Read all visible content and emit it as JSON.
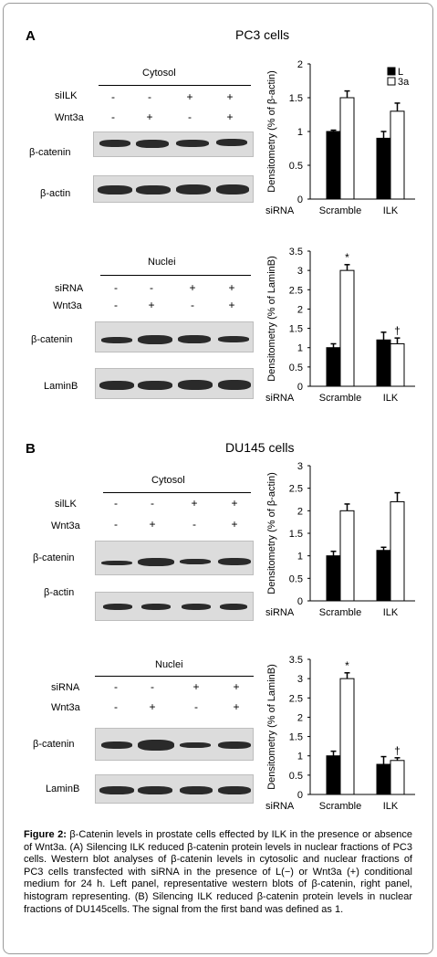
{
  "panels": [
    {
      "label": "A",
      "title": "PC3 cells",
      "blots": [
        {
          "header": "Cytosol",
          "cond_rows": [
            {
              "label": "siILK",
              "values": [
                "-",
                "-",
                "+",
                "+"
              ]
            },
            {
              "label": "Wnt3a",
              "values": [
                "-",
                "+",
                "-",
                "+"
              ]
            }
          ],
          "band_labels": [
            "β-catenin",
            "β-actin"
          ]
        },
        {
          "header": "Nuclei",
          "cond_rows": [
            {
              "label": "siRNA",
              "values": [
                "-",
                "-",
                "+",
                "+"
              ]
            },
            {
              "label": "Wnt3a",
              "values": [
                "-",
                "+",
                "-",
                "+"
              ]
            }
          ],
          "band_labels": [
            "β-catenin",
            "LaminB"
          ]
        }
      ]
    },
    {
      "label": "B",
      "title": "DU145 cells",
      "blots": [
        {
          "header": "Cytosol",
          "cond_rows": [
            {
              "label": "silLK",
              "values": [
                "-",
                "-",
                "+",
                "+"
              ]
            },
            {
              "label": "Wnt3a",
              "values": [
                "-",
                "+",
                "-",
                "+"
              ]
            }
          ],
          "band_labels": [
            "β-catenin",
            "β-actin"
          ]
        },
        {
          "header": "Nuclei",
          "cond_rows": [
            {
              "label": "siRNA",
              "values": [
                "-",
                "-",
                "+",
                "+"
              ]
            },
            {
              "label": "Wnt3a",
              "values": [
                "-",
                "+",
                "-",
                "+"
              ]
            }
          ],
          "band_labels": [
            "β-catenin",
            "LaminB"
          ]
        }
      ]
    }
  ],
  "chart_data": [
    {
      "type": "bar",
      "ylabel": "Densitometry (% of β-actin)",
      "xlabel": "siRNA",
      "categories": [
        "Scramble",
        "ILK"
      ],
      "ylim": [
        0,
        2
      ],
      "yticks": [
        "0",
        "0.5",
        "1",
        "1.5",
        "2"
      ],
      "legend": [
        "L",
        "3a"
      ],
      "legend_placement": "top-right",
      "series": [
        {
          "name": "L",
          "values": [
            1.0,
            0.9
          ],
          "errors": [
            0.02,
            0.1
          ],
          "color": "#000000"
        },
        {
          "name": "3a",
          "values": [
            1.5,
            1.3
          ],
          "errors": [
            0.1,
            0.12
          ],
          "color": "#ffffff"
        }
      ],
      "annotations": []
    },
    {
      "type": "bar",
      "ylabel": "Densitometry (% of LaminB)",
      "xlabel": "siRNA",
      "categories": [
        "Scramble",
        "ILK"
      ],
      "ylim": [
        0,
        3.5
      ],
      "yticks": [
        "0",
        "0.5",
        "1",
        "1.5",
        "2",
        "2.5",
        "3",
        "3.5"
      ],
      "series": [
        {
          "values": [
            1.0,
            1.2
          ],
          "errors": [
            0.1,
            0.2
          ],
          "color": "#000000"
        },
        {
          "values": [
            3.0,
            1.1
          ],
          "errors": [
            0.15,
            0.15
          ],
          "color": "#ffffff"
        }
      ],
      "annotations": [
        {
          "text": "*",
          "category": 0,
          "series": 1
        },
        {
          "text": "†",
          "category": 1,
          "series": 1
        }
      ]
    },
    {
      "type": "bar",
      "ylabel": "Densitometry (% of β-actin)",
      "xlabel": "siRNA",
      "categories": [
        "Scramble",
        "ILK"
      ],
      "ylim": [
        0,
        3
      ],
      "yticks": [
        "0",
        "0.5",
        "1",
        "1.5",
        "2",
        "2.5",
        "3"
      ],
      "series": [
        {
          "values": [
            1.0,
            1.12
          ],
          "errors": [
            0.1,
            0.07
          ],
          "color": "#000000"
        },
        {
          "values": [
            2.0,
            2.2
          ],
          "errors": [
            0.15,
            0.2
          ],
          "color": "#ffffff"
        }
      ],
      "annotations": []
    },
    {
      "type": "bar",
      "ylabel": "Densitometry (% of LaminB)",
      "xlabel": "siRNA",
      "categories": [
        "Scramble",
        "ILK"
      ],
      "ylim": [
        0,
        3.5
      ],
      "yticks": [
        "0",
        "0.5",
        "1",
        "1.5",
        "2",
        "2.5",
        "3",
        "3.5"
      ],
      "series": [
        {
          "values": [
            1.0,
            0.78
          ],
          "errors": [
            0.12,
            0.2
          ],
          "color": "#000000"
        },
        {
          "values": [
            3.0,
            0.88
          ],
          "errors": [
            0.15,
            0.07
          ],
          "color": "#ffffff"
        }
      ],
      "annotations": [
        {
          "text": "*",
          "category": 0,
          "series": 1
        },
        {
          "text": "†",
          "category": 1,
          "series": 1
        }
      ]
    }
  ],
  "caption": {
    "label": "Figure 2:",
    "text": " β-Catenin levels in prostate cells effected by ILK in the presence or absence of Wnt3a. (A) Silencing ILK reduced β-catenin protein levels in nuclear fractions of PC3 cells. Western blot analyses of β-catenin levels in cytosolic and nuclear fractions of PC3 cells transfected with siRNA in the presence of L(−) or Wnt3a (+) conditional medium for 24 h. Left panel, representative western blots of β-catenin, right panel, histogram representing. (B) Silencing ILK reduced β-catenin protein levels in nuclear fractions of DU145cells. The signal from the first band was defined as 1."
  }
}
